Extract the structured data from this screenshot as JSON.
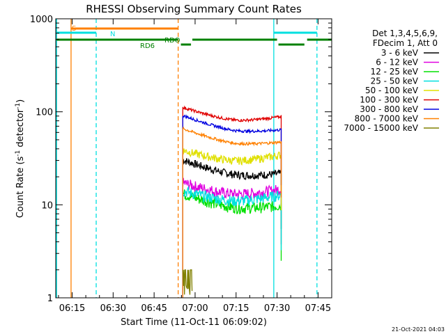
{
  "chart_data": {
    "type": "line",
    "title": "RHESSI Observing Summary Count Rates",
    "xlabel": "Start Time (11-Oct-11 06:09:02)",
    "ylabel_main": "Count Rate (s",
    "ylabel_sup1": "-1",
    "ylabel_mid": " detector",
    "ylabel_sup2": "-1",
    "ylabel_end": ")",
    "yscale": "log",
    "ylim": [
      1,
      1000
    ],
    "xlim_min": [
      369,
      470
    ],
    "x_ticks": [
      {
        "label": "06:15",
        "min": 375
      },
      {
        "label": "06:30",
        "min": 390
      },
      {
        "label": "06:45",
        "min": 405
      },
      {
        "label": "07:00",
        "min": 420
      },
      {
        "label": "07:15",
        "min": 435
      },
      {
        "label": "07:30",
        "min": 450
      },
      {
        "label": "07:45",
        "min": 465
      }
    ],
    "y_ticks": [
      {
        "label": "1",
        "value": 1
      },
      {
        "label": "10",
        "value": 10
      },
      {
        "label": "100",
        "value": 100
      },
      {
        "label": "1000",
        "value": 1000
      }
    ],
    "legend_header": [
      "Det 1,3,4,5,6,9,",
      "FDecim 1, Att 0"
    ],
    "series": [
      {
        "name": "3 - 6 keV",
        "color": "#000000",
        "start": 30,
        "end": 22
      },
      {
        "name": "6 - 12 keV",
        "color": "#e000e0",
        "start": 17,
        "end": 15
      },
      {
        "name": "12 - 25 keV",
        "color": "#00e000",
        "start": 13,
        "end": 10
      },
      {
        "name": "25 - 50 keV",
        "color": "#00e0e0",
        "start": 14,
        "end": 13
      },
      {
        "name": "50 - 100 keV",
        "color": "#e0e000",
        "start": 38,
        "end": 35
      },
      {
        "name": "100 - 300 keV",
        "color": "#e00000",
        "start": 110,
        "end": 90
      },
      {
        "name": "300 - 800 keV",
        "color": "#0000e0",
        "start": 90,
        "end": 65
      },
      {
        "name": "800 - 7000 keV",
        "color": "#ff8000",
        "start": 65,
        "end": 48
      },
      {
        "name": "7000 - 15000 keV",
        "color": "#808000",
        "start": 2,
        "end": 1
      }
    ],
    "data_start_min": 415.5,
    "data_end_min": 451.5,
    "annotations": [
      {
        "label": "S",
        "color": "#ff8000"
      },
      {
        "label": "N",
        "color": "#00e0e0"
      },
      {
        "label": "RD6",
        "color": "#008000"
      },
      {
        "label": "RDO",
        "color": "#008000"
      }
    ],
    "timestamp": "21-Oct-2021 04:03"
  }
}
